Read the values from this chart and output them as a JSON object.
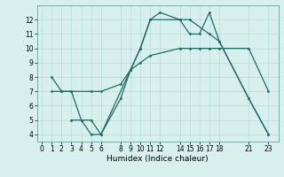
{
  "title": "",
  "xlabel": "Humidex (Indice chaleur)",
  "background_color": "#d7f0ed",
  "grid_color": "#b8dbd8",
  "line_color": "#1e6b65",
  "line1_x": [
    1,
    2,
    3,
    4,
    5,
    6,
    9,
    10,
    11,
    12,
    14,
    15,
    17,
    18,
    21,
    23
  ],
  "line1_y": [
    8,
    7,
    7,
    5,
    5,
    4,
    8.5,
    10.0,
    12.0,
    12.5,
    12.0,
    12.0,
    11.0,
    10.5,
    6.5,
    4.0
  ],
  "line2_x": [
    1,
    2,
    3,
    5,
    6,
    8,
    9,
    10,
    11,
    14,
    15,
    16,
    17,
    18,
    21,
    23
  ],
  "line2_y": [
    7,
    7,
    7,
    7,
    7,
    7.5,
    8.5,
    9.0,
    9.5,
    10.0,
    10.0,
    10.0,
    10.0,
    10.0,
    10.0,
    7.0
  ],
  "line3_x": [
    3,
    4,
    5,
    6,
    8,
    9,
    10,
    11,
    14,
    15,
    16,
    17,
    18,
    21,
    23
  ],
  "line3_y": [
    5,
    5,
    4,
    4,
    6.5,
    8.5,
    10.0,
    12.0,
    12.0,
    11.0,
    11.0,
    12.5,
    10.5,
    6.5,
    4.0
  ],
  "xlim": [
    -0.5,
    24.0
  ],
  "ylim": [
    3.5,
    13.0
  ],
  "yticks": [
    4,
    5,
    6,
    7,
    8,
    9,
    10,
    11,
    12
  ],
  "xticks": [
    0,
    1,
    2,
    3,
    4,
    5,
    6,
    8,
    9,
    10,
    11,
    12,
    14,
    15,
    16,
    17,
    18,
    21,
    23
  ]
}
